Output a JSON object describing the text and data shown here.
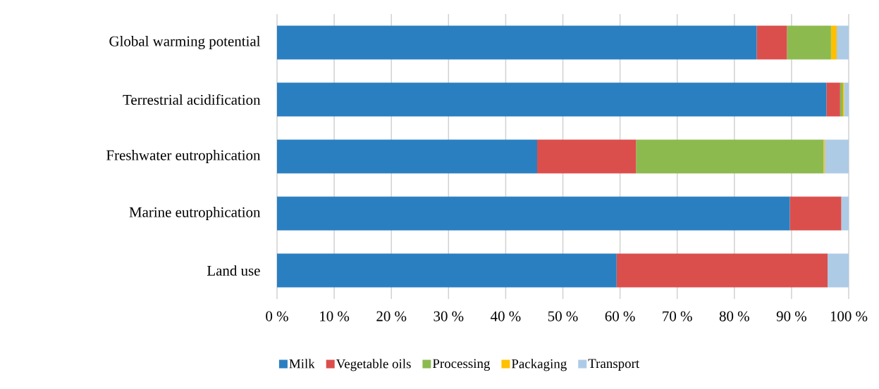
{
  "chart_data": {
    "type": "bar",
    "orientation": "horizontal",
    "stacked": true,
    "categories": [
      "Global warming potential",
      "Terrestrial acidification",
      "Freshwater eutrophication",
      "Marine eutrophication",
      "Land use"
    ],
    "series": [
      {
        "name": "Milk",
        "color": "#2a7fc0",
        "values": [
          83.9,
          96.1,
          45.5,
          89.7,
          59.4
        ]
      },
      {
        "name": "Vegetable oils",
        "color": "#da4f4c",
        "values": [
          5.3,
          2.4,
          17.3,
          9.0,
          36.9
        ]
      },
      {
        "name": "Processing",
        "color": "#8cba4f",
        "values": [
          7.7,
          0.5,
          32.8,
          0,
          0
        ]
      },
      {
        "name": "Packaging",
        "color": "#ffc000",
        "values": [
          1.0,
          0.2,
          0.2,
          0,
          0
        ]
      },
      {
        "name": "Transport",
        "color": "#aecbe6",
        "values": [
          2.1,
          0.8,
          4.2,
          1.3,
          3.7
        ]
      }
    ],
    "xlim": [
      0,
      100
    ],
    "xticks": [
      {
        "value": 0,
        "label": "0 %"
      },
      {
        "value": 10,
        "label": "10 %"
      },
      {
        "value": 20,
        "label": "20 %"
      },
      {
        "value": 30,
        "label": "30 %"
      },
      {
        "value": 40,
        "label": "40 %"
      },
      {
        "value": 50,
        "label": "50 %"
      },
      {
        "value": 60,
        "label": "60 %"
      },
      {
        "value": 70,
        "label": "70 %"
      },
      {
        "value": 80,
        "label": "80 %"
      },
      {
        "value": 90,
        "label": "90 %"
      },
      {
        "value": 100,
        "label": "100 %"
      }
    ],
    "grid": "x",
    "legend": "bottom"
  }
}
